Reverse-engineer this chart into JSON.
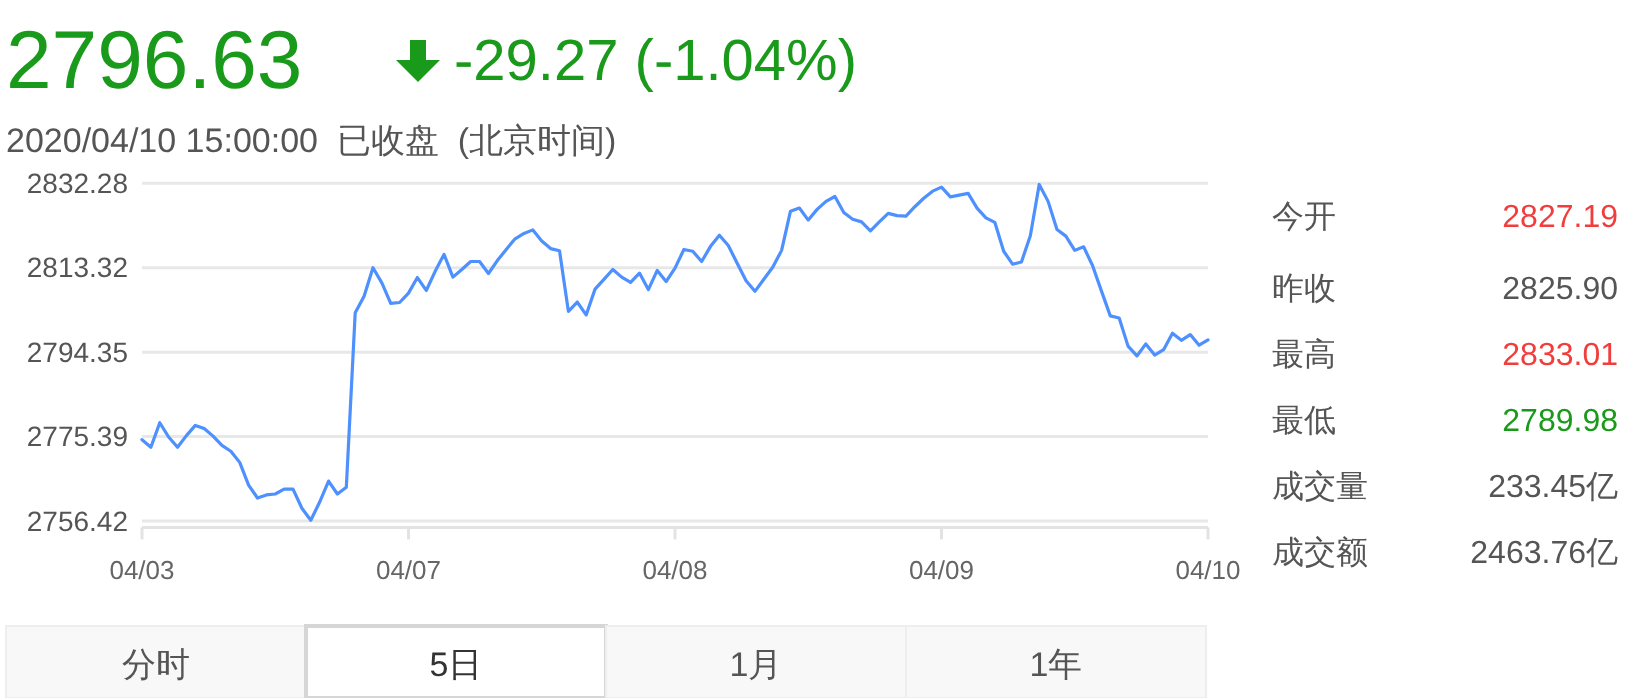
{
  "chart_data": {
    "type": "line",
    "title": "2796.63",
    "subtitle": "-29.27 (-1.04%)",
    "annotations": [
      "2020/04/10 15:00:00  已收盘  (北京时间)",
      "今开",
      "2827.19",
      "昨收",
      "2825.90",
      "最高",
      "2833.01",
      "最低",
      "2789.98",
      "成交量",
      "233.45亿",
      "成交额",
      "2463.76亿",
      "分时",
      "5日",
      "1月",
      "1年"
    ],
    "categories": [
      "04/03",
      null,
      null,
      null,
      null,
      null,
      null,
      null,
      null,
      null,
      null,
      null,
      null,
      null,
      null,
      null,
      null,
      null,
      null,
      null,
      null,
      null,
      null,
      null,
      null,
      null,
      null,
      null,
      null,
      null,
      "04/07",
      null,
      null,
      null,
      null,
      null,
      null,
      null,
      null,
      null,
      null,
      null,
      null,
      null,
      null,
      null,
      null,
      null,
      null,
      null,
      null,
      null,
      null,
      null,
      null,
      null,
      null,
      null,
      null,
      null,
      "04/08",
      null,
      null,
      null,
      null,
      null,
      null,
      null,
      null,
      null,
      null,
      null,
      null,
      null,
      null,
      null,
      null,
      null,
      null,
      null,
      null,
      null,
      null,
      null,
      null,
      null,
      null,
      null,
      null,
      null,
      "04/09",
      null,
      null,
      null,
      null,
      null,
      null,
      null,
      null,
      null,
      null,
      null,
      null,
      null,
      null,
      null,
      null,
      null,
      null,
      null,
      null,
      null,
      null,
      null,
      null,
      null,
      null,
      null,
      null,
      null,
      "04/10"
    ],
    "series": [
      {
        "color": "#4d90fe",
        "values": [
          2774.7,
          2773.0,
          2778.5,
          2775.3,
          2773.0,
          2775.6,
          2777.9,
          2777.2,
          2775.5,
          2773.4,
          2772.1,
          2769.6,
          2764.5,
          2761.6,
          2762.3,
          2762.5,
          2763.6,
          2763.6,
          2759.3,
          2756.6,
          2760.7,
          2765.4,
          2762.5,
          2764.0,
          2803.2,
          2806.9,
          2813.3,
          2809.9,
          2805.3,
          2805.5,
          2807.6,
          2811.1,
          2808.2,
          2812.5,
          2816.3,
          2811.2,
          2812.9,
          2814.7,
          2814.7,
          2812.0,
          2814.9,
          2817.4,
          2819.8,
          2821.0,
          2821.8,
          2819.3,
          2817.6,
          2817.1,
          2803.5,
          2805.6,
          2802.7,
          2808.5,
          2810.7,
          2812.9,
          2811.2,
          2810.0,
          2812.1,
          2808.4,
          2812.7,
          2810.2,
          2813.2,
          2817.4,
          2817.0,
          2814.7,
          2818.1,
          2820.6,
          2818.3,
          2814.3,
          2810.4,
          2808.0,
          2810.7,
          2813.4,
          2817.2,
          2826.0,
          2826.7,
          2824.0,
          2826.4,
          2828.2,
          2829.3,
          2825.7,
          2824.2,
          2823.6,
          2821.6,
          2823.6,
          2825.5,
          2825.0,
          2824.9,
          2827.0,
          2828.9,
          2830.5,
          2831.4,
          2829.2,
          2829.6,
          2830.0,
          2826.7,
          2824.5,
          2823.5,
          2817.0,
          2814.1,
          2814.6,
          2820.5,
          2832.0,
          2828.2,
          2821.9,
          2820.4,
          2817.2,
          2818.0,
          2813.8,
          2808.1,
          2802.5,
          2802.0,
          2795.7,
          2793.5,
          2796.2,
          2793.7,
          2794.9,
          2798.6,
          2797.0,
          2798.3,
          2795.9,
          2797.1
        ]
      }
    ],
    "ylim": [
      2755,
      2833
    ],
    "yticks": [
      2756.42,
      2775.39,
      2794.35,
      2813.32,
      2832.28
    ],
    "grid": "y",
    "marker": "none",
    "line_style": "solid"
  }
}
